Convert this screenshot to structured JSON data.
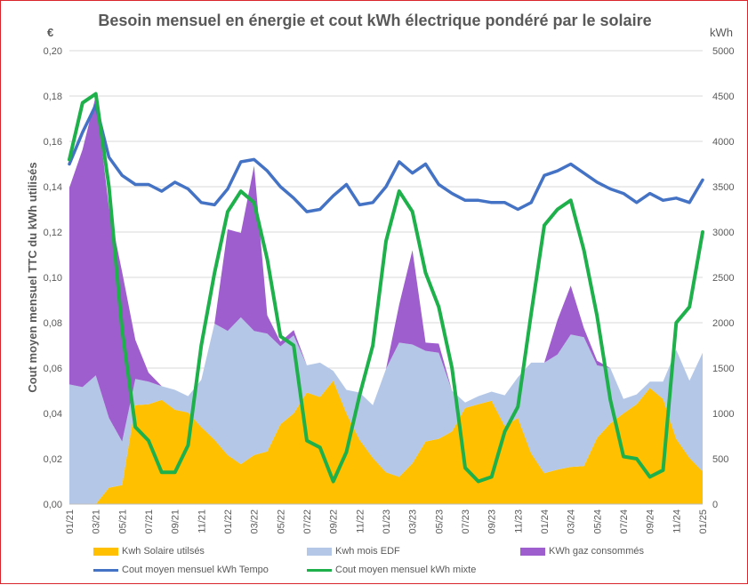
{
  "chart_data": {
    "type": "area",
    "title": "Besoin mensuel en énergie et cout kWh électrique pondéré par le solaire",
    "ylabel": "Cout moyen mensuel TTC du kWh utilisés",
    "y_left_unit": "€",
    "y_right_unit": "kWh",
    "ylim_left": [
      0,
      0.2
    ],
    "ylim_right": [
      0,
      5000
    ],
    "y_left_ticks": [
      "0,00",
      "0,02",
      "0,04",
      "0,06",
      "0,08",
      "0,10",
      "0,12",
      "0,14",
      "0,16",
      "0,18",
      "0,20"
    ],
    "y_right_ticks": [
      "0",
      "500",
      "1000",
      "1500",
      "2000",
      "2500",
      "3000",
      "3500",
      "4000",
      "4500",
      "5000"
    ],
    "x_tick_labels": [
      "01/21",
      "03/21",
      "05/21",
      "07/21",
      "09/21",
      "11/21",
      "01/22",
      "03/22",
      "05/22",
      "07/22",
      "09/22",
      "11/22",
      "01/23",
      "03/23",
      "05/23",
      "07/23",
      "09/23",
      "11/23",
      "01/24",
      "03/24",
      "05/24",
      "07/24",
      "09/24",
      "11/24",
      "01/25"
    ],
    "x": [
      "01/21",
      "02/21",
      "03/21",
      "04/21",
      "05/21",
      "06/21",
      "07/21",
      "08/21",
      "09/21",
      "10/21",
      "11/21",
      "12/21",
      "01/22",
      "02/22",
      "03/22",
      "04/22",
      "05/22",
      "06/22",
      "07/22",
      "08/22",
      "09/22",
      "10/22",
      "11/22",
      "12/22",
      "01/23",
      "02/23",
      "03/23",
      "04/23",
      "05/23",
      "06/23",
      "07/23",
      "08/23",
      "09/23",
      "10/23",
      "11/23",
      "12/23",
      "01/24",
      "02/24",
      "03/24",
      "04/24",
      "05/24",
      "06/24",
      "07/24",
      "08/24",
      "09/24",
      "10/24",
      "11/24",
      "12/24",
      "01/25"
    ],
    "stacked_areas": [
      {
        "name": "Kwh Solaire utilsés",
        "color": "#ffc000",
        "values": [
          0,
          0,
          0,
          180,
          210,
          1090,
          1100,
          1150,
          1040,
          1010,
          850,
          710,
          540,
          440,
          540,
          580,
          880,
          1000,
          1230,
          1180,
          1360,
          1000,
          710,
          510,
          350,
          300,
          450,
          690,
          720,
          800,
          1060,
          1100,
          1140,
          860,
          950,
          560,
          340,
          380,
          410,
          420,
          730,
          890,
          1000,
          1100,
          1280,
          1160,
          720,
          510,
          360
        ]
      },
      {
        "name": "Kwh mois EDF",
        "color": "#b4c7e7",
        "values": [
          1320,
          1290,
          1420,
          770,
          480,
          290,
          250,
          150,
          220,
          180,
          520,
          1280,
          1370,
          1620,
          1370,
          1300,
          860,
          860,
          300,
          380,
          110,
          260,
          520,
          580,
          1140,
          1480,
          1310,
          1000,
          950,
          450,
          60,
          90,
          100,
          340,
          450,
          1000,
          1220,
          1270,
          1460,
          1420,
          800,
          610,
          160,
          110,
          70,
          190,
          980,
          850,
          1310
        ]
      },
      {
        "name": "KWh gaz consommés",
        "color": "#9e5ecd",
        "values": [
          2170,
          2620,
          3080,
          2320,
          1870,
          430,
          100,
          0,
          0,
          0,
          0,
          0,
          1120,
          930,
          1820,
          200,
          50,
          60,
          0,
          0,
          0,
          0,
          0,
          0,
          0,
          420,
          1040,
          90,
          100,
          0,
          0,
          0,
          0,
          0,
          0,
          0,
          0,
          380,
          540,
          100,
          50,
          0,
          0,
          0,
          0,
          0,
          0,
          0,
          0
        ]
      }
    ],
    "lines": [
      {
        "name": "Cout moyen mensuel kWh Tempo",
        "color": "#4472c4",
        "axis": "left",
        "values": [
          0.15,
          0.164,
          0.176,
          0.153,
          0.145,
          0.141,
          0.141,
          0.138,
          0.142,
          0.139,
          0.133,
          0.132,
          0.139,
          0.151,
          0.152,
          0.147,
          0.14,
          0.135,
          0.129,
          0.13,
          0.136,
          0.141,
          0.132,
          0.133,
          0.14,
          0.151,
          0.146,
          0.15,
          0.141,
          0.137,
          0.134,
          0.134,
          0.133,
          0.133,
          0.13,
          0.133,
          0.145,
          0.147,
          0.15,
          0.146,
          0.142,
          0.139,
          0.137,
          0.133,
          0.137,
          0.134,
          0.135,
          0.133,
          0.143
        ]
      },
      {
        "name": "Cout moyen mensuel kWh mixte",
        "color": "#1eb04a",
        "axis": "left",
        "values": [
          0.152,
          0.177,
          0.181,
          0.14,
          0.077,
          0.034,
          0.028,
          0.014,
          0.014,
          0.026,
          0.07,
          0.102,
          0.129,
          0.138,
          0.133,
          0.108,
          0.074,
          0.07,
          0.028,
          0.025,
          0.01,
          0.023,
          0.048,
          0.07,
          0.116,
          0.138,
          0.129,
          0.102,
          0.087,
          0.06,
          0.016,
          0.01,
          0.012,
          0.032,
          0.043,
          0.084,
          0.123,
          0.13,
          0.134,
          0.112,
          0.083,
          0.046,
          0.021,
          0.02,
          0.012,
          0.015,
          0.08,
          0.087,
          0.12
        ]
      }
    ]
  },
  "legend": {
    "solar": "Kwh Solaire utilsés",
    "edf": "Kwh mois EDF",
    "gaz": "KWh gaz consommés",
    "tempo": "Cout moyen mensuel kWh Tempo",
    "mixte": "Cout moyen mensuel kWh mixte"
  },
  "colors": {
    "solar": "#ffc000",
    "edf": "#b4c7e7",
    "gaz": "#9e5ecd",
    "tempo": "#4472c4",
    "mixte": "#1eb04a",
    "frame": "#d9242b"
  }
}
